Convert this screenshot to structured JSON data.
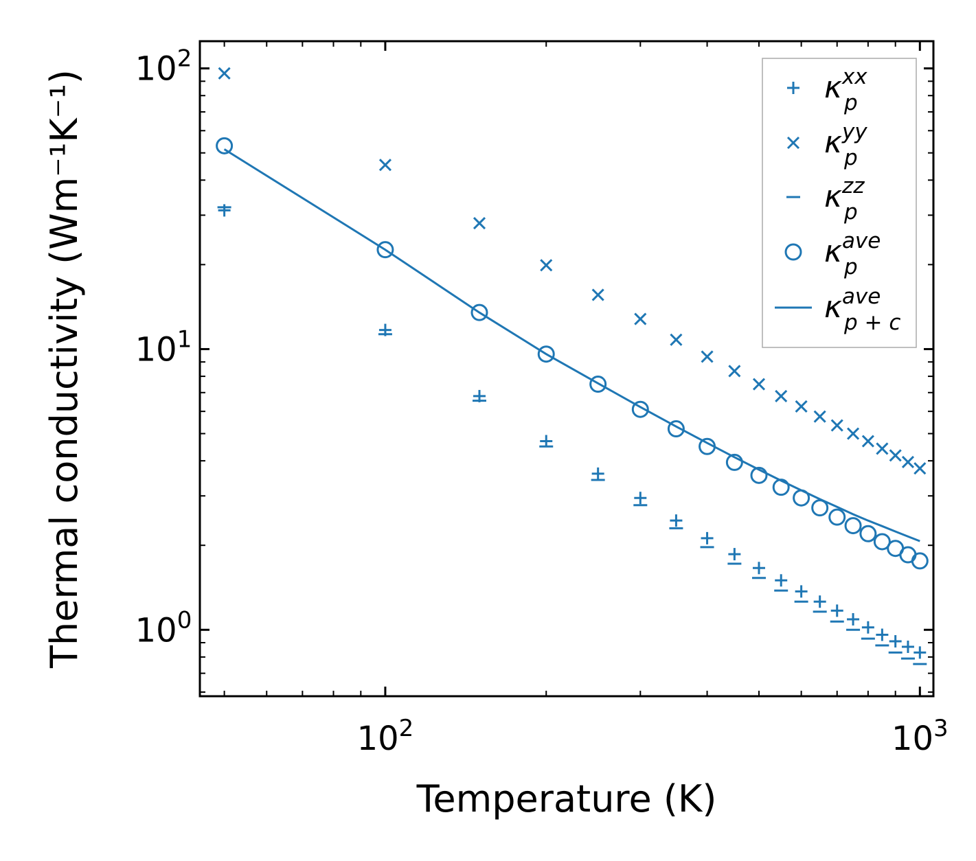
{
  "chart_data": {
    "type": "scatter",
    "title": "",
    "xlabel": "Temperature (K)",
    "ylabel": "Thermal conductivity (Wm⁻¹K⁻¹)",
    "xscale": "log",
    "yscale": "log",
    "xlim": [
      45,
      1060
    ],
    "ylim": [
      0.58,
      125
    ],
    "x_ticks": [
      {
        "base": "10",
        "exp": "2"
      },
      {
        "base": "10",
        "exp": "3"
      }
    ],
    "y_ticks": [
      {
        "base": "10",
        "exp": "0"
      },
      {
        "base": "10",
        "exp": "1"
      },
      {
        "base": "10",
        "exp": "2"
      }
    ],
    "x": [
      50,
      100,
      150,
      200,
      250,
      300,
      350,
      400,
      450,
      500,
      550,
      600,
      650,
      700,
      750,
      800,
      850,
      900,
      950,
      1000
    ],
    "series": [
      {
        "name": "κ_p^xx",
        "label_main": "κ",
        "label_sub": "p",
        "label_sup": "xx",
        "marker": "plus",
        "values": [
          31.2,
          11.7,
          6.8,
          4.7,
          3.6,
          2.95,
          2.45,
          2.12,
          1.86,
          1.66,
          1.5,
          1.37,
          1.26,
          1.17,
          1.09,
          1.02,
          0.96,
          0.91,
          0.87,
          0.83
        ]
      },
      {
        "name": "κ_p^yy",
        "label_main": "κ",
        "label_sub": "p",
        "label_sup": "yy",
        "marker": "x",
        "values": [
          96,
          45.3,
          28.1,
          19.9,
          15.6,
          12.8,
          10.8,
          9.4,
          8.35,
          7.5,
          6.8,
          6.25,
          5.75,
          5.35,
          5.0,
          4.7,
          4.42,
          4.18,
          3.96,
          3.76
        ]
      },
      {
        "name": "κ_p^zz",
        "label_main": "κ",
        "label_sub": "p",
        "label_sup": "zz",
        "marker": "hline",
        "values": [
          32.0,
          11.3,
          6.55,
          4.5,
          3.42,
          2.78,
          2.3,
          1.97,
          1.72,
          1.53,
          1.38,
          1.26,
          1.16,
          1.07,
          1.0,
          0.93,
          0.88,
          0.83,
          0.79,
          0.755
        ]
      },
      {
        "name": "κ_p^ave",
        "label_main": "κ",
        "label_sub": "p",
        "label_sup": "ave",
        "marker": "circle",
        "values": [
          53,
          22.6,
          13.5,
          9.6,
          7.5,
          6.1,
          5.2,
          4.5,
          3.95,
          3.55,
          3.22,
          2.95,
          2.72,
          2.52,
          2.35,
          2.2,
          2.06,
          1.95,
          1.85,
          1.76
        ]
      },
      {
        "name": "κ_p+c^ave",
        "label_main": "κ",
        "label_sub": "p + c",
        "label_sup": "ave",
        "marker": "line",
        "values": [
          51.5,
          22.6,
          13.5,
          9.6,
          7.55,
          6.22,
          5.3,
          4.63,
          4.12,
          3.72,
          3.4,
          3.14,
          2.92,
          2.74,
          2.58,
          2.45,
          2.34,
          2.24,
          2.15,
          2.07
        ]
      }
    ],
    "legend_position": "top-right",
    "grid": false
  },
  "colors": {
    "series": "#1f77b4",
    "axis": "#000000",
    "legend_border": "#aaaaaa"
  }
}
